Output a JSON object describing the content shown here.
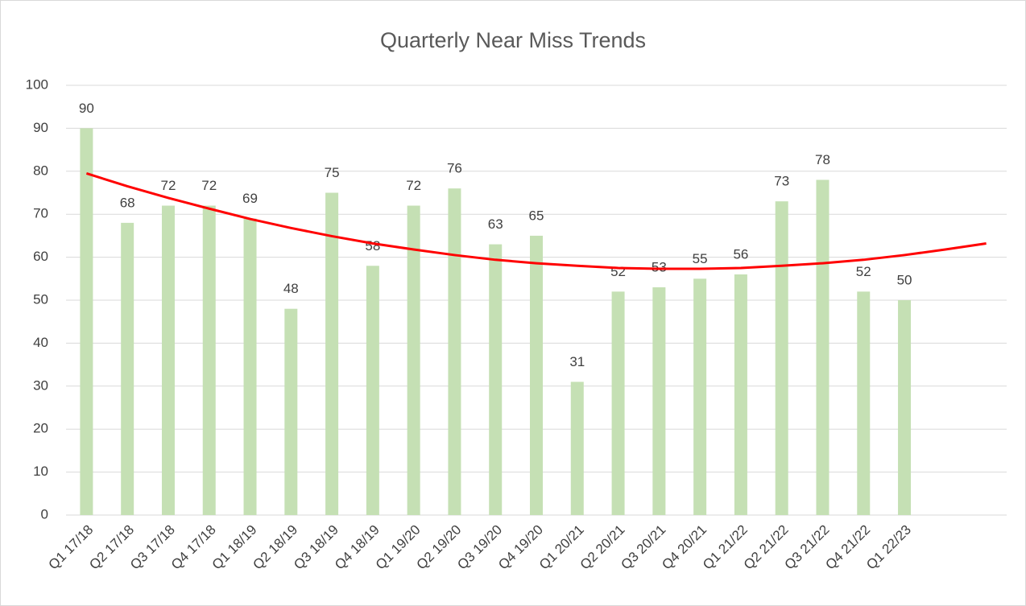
{
  "chart_data": {
    "type": "bar",
    "title": "Quarterly Near Miss Trends",
    "categories": [
      "Q1 17/18",
      "Q2 17/18",
      "Q3 17/18",
      "Q4 17/18",
      "Q1 18/19",
      "Q2 18/19",
      "Q3 18/19",
      "Q4 18/19",
      "Q1 19/20",
      "Q2 19/20",
      "Q3 19/20",
      "Q4 19/20",
      "Q1 20/21",
      "Q2 20/21",
      "Q3 20/21",
      "Q4 20/21",
      "Q1 21/22",
      "Q2 21/22",
      "Q3 21/22",
      "Q4 21/22",
      "Q1 22/23",
      null,
      null
    ],
    "series": [
      {
        "type": "bar",
        "color": "#c5e0b4",
        "values": [
          90,
          68,
          72,
          72,
          69,
          48,
          75,
          58,
          72,
          76,
          63,
          65,
          31,
          52,
          53,
          55,
          56,
          73,
          78,
          52,
          50,
          null,
          null
        ]
      },
      {
        "type": "line",
        "color": "#ff0000",
        "values": [
          79.5,
          76.5,
          73.8,
          71.3,
          68.9,
          66.8,
          64.9,
          63.2,
          61.8,
          60.5,
          59.4,
          58.6,
          58.0,
          57.5,
          57.3,
          57.3,
          57.5,
          58.0,
          58.6,
          59.4,
          60.5,
          61.8,
          63.2
        ]
      }
    ],
    "ylim": [
      0,
      100
    ],
    "yticks": [
      0,
      10,
      20,
      30,
      40,
      50,
      60,
      70,
      80,
      90,
      100
    ],
    "grid": true
  }
}
